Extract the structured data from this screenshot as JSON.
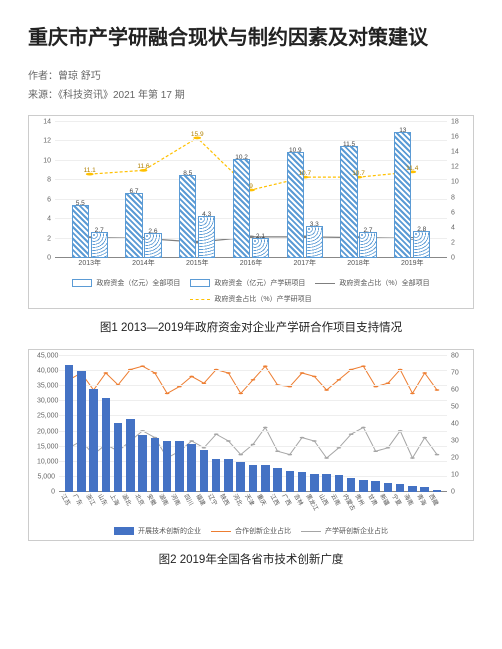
{
  "title": "重庆市产学研融合现状与制约因素及对策建议",
  "author_line": "作者：曾琼 舒巧",
  "source_line": "来源：《科技资讯》2021 年第 17 期",
  "chart1": {
    "caption": "图1  2013—2019年政府资金对企业产学研合作项目支持情况",
    "categories": [
      "2013年",
      "2014年",
      "2015年",
      "2016年",
      "2017年",
      "2018年",
      "2019年"
    ],
    "series_bar1": {
      "label": "政府资金（亿元）全部项目",
      "values": [
        5.5,
        6.7,
        8.5,
        10.2,
        10.9,
        11.5,
        13.0
      ]
    },
    "series_bar2": {
      "label": "政府资金（亿元）产学研项目",
      "values": [
        2.7,
        2.6,
        4.3,
        2.1,
        3.3,
        2.7,
        2.8
      ]
    },
    "series_line1": {
      "label": "政府资金占比（%）全部项目",
      "values": [
        2.7,
        2.6,
        2.1,
        2.8,
        2.8,
        2.7,
        2.6
      ],
      "color": "#7f7f7f"
    },
    "series_line2": {
      "label": "政府资金占比（%）产学研项目",
      "values": [
        11.1,
        11.6,
        15.9,
        9.0,
        10.7,
        10.7,
        11.4
      ],
      "color": "#ffc000",
      "dash": true
    },
    "y_left": {
      "min": 0,
      "max": 14,
      "step": 2
    },
    "y_right": {
      "min": 0,
      "max": 18,
      "step": 2
    },
    "bar1_style": "hatched",
    "bar2_style": "dotted",
    "bg": "#ffffff"
  },
  "chart2": {
    "caption": "图2  2019年全国各省市技术创新广度",
    "categories": [
      "江苏",
      "广东",
      "浙江",
      "山东",
      "上海",
      "湖北",
      "北京",
      "安徽",
      "湖南",
      "河南",
      "四川",
      "福建",
      "辽宁",
      "陕西",
      "河北",
      "天津",
      "重庆",
      "江西",
      "广西",
      "吉林",
      "黑龙江",
      "山西",
      "云南",
      "内蒙古",
      "贵州",
      "甘肃",
      "新疆",
      "宁夏",
      "海南",
      "青海",
      "西藏"
    ],
    "series_bar": {
      "label": "开展技术创新的企业",
      "color": "#4472c4",
      "values": [
        42000,
        40000,
        34000,
        31000,
        23000,
        24000,
        19000,
        18000,
        17000,
        17000,
        16000,
        14000,
        11000,
        11000,
        10000,
        9000,
        9000,
        8000,
        7000,
        6500,
        6000,
        6000,
        5500,
        4500,
        4000,
        3500,
        3000,
        2500,
        2000,
        1500,
        800
      ]
    },
    "series_line1": {
      "label": "合作创新企业占比",
      "color": "#ed7d31",
      "values": [
        66,
        70,
        60,
        70,
        63,
        72,
        74,
        70,
        58,
        62,
        68,
        64,
        72,
        70,
        58,
        66,
        74,
        63,
        62,
        70,
        68,
        60,
        66,
        72,
        74,
        62,
        64,
        72,
        58,
        70,
        60
      ]
    },
    "series_line2": {
      "label": "产学研创新企业占比",
      "color": "#a5a5a5",
      "values": [
        26,
        30,
        22,
        28,
        24,
        30,
        36,
        32,
        20,
        24,
        30,
        26,
        34,
        30,
        22,
        28,
        38,
        24,
        22,
        32,
        30,
        20,
        26,
        34,
        38,
        24,
        26,
        36,
        20,
        32,
        22
      ]
    },
    "y_left": {
      "min": 0,
      "max": 45000,
      "step": 5000
    },
    "y_right": {
      "min": 0,
      "max": 80,
      "step": 10
    },
    "bg": "#ffffff"
  }
}
